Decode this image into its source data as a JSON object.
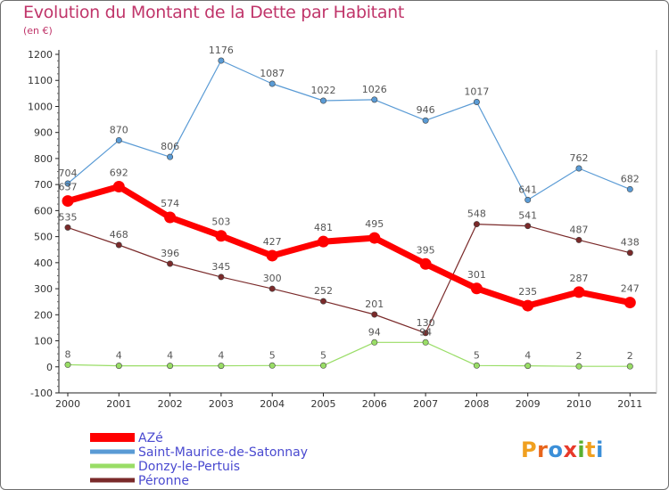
{
  "header": {
    "title": "Evolution du Montant de la Dette par Habitant",
    "unit": "(en €)"
  },
  "logo": {
    "text": "Proxiti",
    "letters": [
      {
        "ch": "P",
        "color": "#f0a020"
      },
      {
        "ch": "r",
        "color": "#e8651c"
      },
      {
        "ch": "o",
        "color": "#3b8fd8"
      },
      {
        "ch": "x",
        "color": "#e83a2a"
      },
      {
        "ch": "i",
        "color": "#5ab030"
      },
      {
        "ch": "t",
        "color": "#f0a020"
      },
      {
        "ch": "i",
        "color": "#3b8fd8"
      }
    ]
  },
  "chart_data": {
    "type": "line",
    "title": "Evolution du Montant de la Dette par Habitant",
    "subtitle": "(en €)",
    "categories": [
      "2000",
      "2001",
      "2002",
      "2003",
      "2004",
      "2005",
      "2006",
      "2007",
      "2008",
      "2009",
      "2010",
      "2011"
    ],
    "ylim": [
      -100,
      1200
    ],
    "yticks": [
      -100,
      0,
      100,
      200,
      300,
      400,
      500,
      600,
      700,
      800,
      900,
      1000,
      1100,
      1200
    ],
    "grid": false,
    "legend_position": "bottom-left",
    "series": [
      {
        "name": "AZé",
        "color": "#ff0000",
        "emphasis": true,
        "values": [
          637,
          692,
          574,
          503,
          427,
          481,
          495,
          395,
          301,
          235,
          287,
          247
        ]
      },
      {
        "name": "Saint-Maurice-de-Satonnay",
        "color": "#5a9bd5",
        "emphasis": false,
        "values": [
          704,
          870,
          806,
          1176,
          1087,
          1022,
          1026,
          946,
          1017,
          641,
          762,
          682
        ]
      },
      {
        "name": "Donzy-le-Pertuis",
        "color": "#99dd66",
        "emphasis": false,
        "values": [
          8,
          4,
          4,
          4,
          5,
          5,
          94,
          94,
          5,
          4,
          2,
          2
        ]
      },
      {
        "name": "Péronne",
        "color": "#7a2a2a",
        "emphasis": false,
        "values": [
          535,
          468,
          396,
          345,
          300,
          252,
          201,
          130,
          548,
          541,
          487,
          438
        ]
      }
    ]
  }
}
